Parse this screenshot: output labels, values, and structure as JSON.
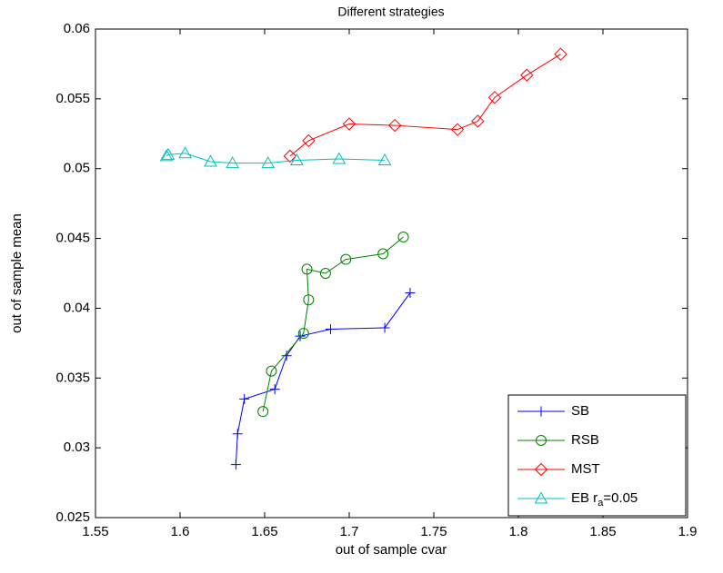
{
  "chart_data": {
    "type": "line",
    "title": "Different strategies",
    "xlabel": "out of sample cvar",
    "ylabel": "out of sample mean",
    "xlim": [
      1.55,
      1.9
    ],
    "xticks": [
      1.55,
      1.6,
      1.65,
      1.7,
      1.75,
      1.8,
      1.85,
      1.9
    ],
    "ylim": [
      0.025,
      0.06
    ],
    "yticks": [
      0.025,
      0.03,
      0.035,
      0.04,
      0.045,
      0.05,
      0.055,
      0.06
    ],
    "legend": "lower right",
    "series": [
      {
        "name": "SB",
        "color": "#0000ff",
        "marker": "plus",
        "x": [
          1.633,
          1.634,
          1.638,
          1.656,
          1.663,
          1.671,
          1.689,
          1.721,
          1.736
        ],
        "values": [
          0.0288,
          0.031,
          0.0335,
          0.0342,
          0.0366,
          0.038,
          0.0385,
          0.0386,
          0.0411
        ]
      },
      {
        "name": "RSB",
        "color": "#008000",
        "marker": "circle",
        "x": [
          1.649,
          1.654,
          1.673,
          1.676,
          1.675,
          1.686,
          1.698,
          1.72,
          1.732
        ],
        "values": [
          0.0326,
          0.0355,
          0.0382,
          0.0406,
          0.0428,
          0.0425,
          0.0435,
          0.0439,
          0.0451
        ]
      },
      {
        "name": "MST",
        "color": "#ff0000",
        "marker": "diamond",
        "x": [
          1.665,
          1.676,
          1.7,
          1.727,
          1.764,
          1.776,
          1.786,
          1.805,
          1.825
        ],
        "values": [
          0.0509,
          0.052,
          0.0532,
          0.0531,
          0.0528,
          0.0534,
          0.0551,
          0.0567,
          0.0582
        ]
      },
      {
        "name": "EB r_a=0.05",
        "color": "#00bfbf",
        "marker": "triangle",
        "x": [
          1.592,
          1.593,
          1.603,
          1.618,
          1.631,
          1.652,
          1.669,
          1.694,
          1.721
        ],
        "values": [
          0.0509,
          0.051,
          0.0511,
          0.0505,
          0.0504,
          0.0504,
          0.0506,
          0.0507,
          0.0506
        ]
      }
    ]
  }
}
